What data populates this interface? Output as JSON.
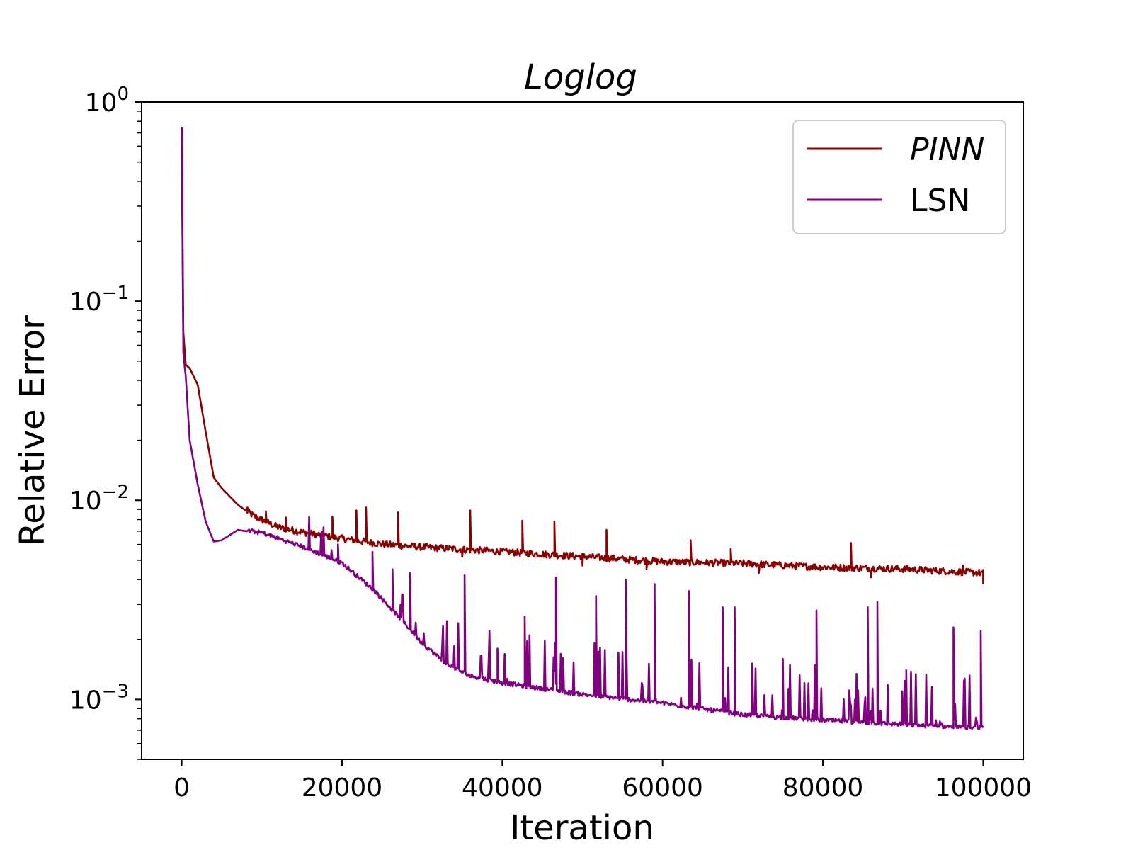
{
  "chart_data": {
    "type": "line",
    "title": "Loglog",
    "xlabel": "Iteration",
    "ylabel": "Relative Error",
    "xlim": [
      -5000,
      105000
    ],
    "ylim": [
      0.0005,
      1.0
    ],
    "yscale": "log",
    "grid": false,
    "legend_position": "top-right",
    "x_ticks": [
      {
        "value": 0,
        "label": "0"
      },
      {
        "value": 20000,
        "label": "20000"
      },
      {
        "value": 40000,
        "label": "40000"
      },
      {
        "value": 60000,
        "label": "60000"
      },
      {
        "value": 80000,
        "label": "80000"
      },
      {
        "value": 100000,
        "label": "100000"
      }
    ],
    "y_ticks": [
      {
        "value": 1,
        "base": "10",
        "exp": "0"
      },
      {
        "value": 0.1,
        "base": "10",
        "exp": "−1"
      },
      {
        "value": 0.01,
        "base": "10",
        "exp": "−2"
      },
      {
        "value": 0.001,
        "base": "10",
        "exp": "−3"
      }
    ],
    "series": [
      {
        "name": "PINN",
        "color": "#8b0000",
        "italic": true,
        "x": [
          0,
          200,
          500,
          1000,
          2000,
          3000,
          4000,
          5000,
          7000,
          9000,
          12000,
          15000,
          20000,
          25000,
          30000,
          40000,
          50000,
          60000,
          70000,
          80000,
          90000,
          100000
        ],
        "y": [
          0.75,
          0.07,
          0.048,
          0.046,
          0.038,
          0.022,
          0.013,
          0.0115,
          0.0095,
          0.0083,
          0.0073,
          0.0069,
          0.0064,
          0.006,
          0.0058,
          0.0055,
          0.0052,
          0.0049,
          0.0048,
          0.0046,
          0.0045,
          0.0043
        ],
        "spikes": [
          {
            "x": 8200,
            "y": 0.0092
          },
          {
            "x": 10500,
            "y": 0.0088
          },
          {
            "x": 13000,
            "y": 0.0082
          },
          {
            "x": 18800,
            "y": 0.0083
          },
          {
            "x": 21800,
            "y": 0.0089
          },
          {
            "x": 23000,
            "y": 0.0092
          },
          {
            "x": 27000,
            "y": 0.0087
          },
          {
            "x": 36000,
            "y": 0.0089
          },
          {
            "x": 42500,
            "y": 0.0079
          },
          {
            "x": 46500,
            "y": 0.0078
          },
          {
            "x": 53000,
            "y": 0.0071
          },
          {
            "x": 63500,
            "y": 0.0063
          },
          {
            "x": 68500,
            "y": 0.0057
          },
          {
            "x": 83500,
            "y": 0.0061
          },
          {
            "x": 97500,
            "y": 0.0047
          }
        ],
        "dips": [
          {
            "x": 35000,
            "y": 0.0052
          },
          {
            "x": 50000,
            "y": 0.0047
          },
          {
            "x": 58000,
            "y": 0.0045
          },
          {
            "x": 72000,
            "y": 0.0043
          },
          {
            "x": 86000,
            "y": 0.0041
          },
          {
            "x": 100000,
            "y": 0.0038
          }
        ]
      },
      {
        "name": "LSN",
        "color": "#800080",
        "italic": false,
        "x": [
          0,
          200,
          500,
          1000,
          2000,
          3000,
          4000,
          5000,
          7000,
          10000,
          15000,
          20000,
          24000,
          27000,
          30000,
          33000,
          36000,
          40000,
          50000,
          60000,
          70000,
          80000,
          90000,
          100000
        ],
        "y": [
          0.75,
          0.055,
          0.042,
          0.02,
          0.012,
          0.0078,
          0.0062,
          0.0063,
          0.0071,
          0.0068,
          0.0058,
          0.0048,
          0.0035,
          0.0026,
          0.0019,
          0.0015,
          0.0013,
          0.0012,
          0.00105,
          0.00095,
          0.00083,
          0.00078,
          0.00074,
          0.00071
        ],
        "spikes": [
          {
            "x": 19500,
            "y": 0.006
          },
          {
            "x": 23800,
            "y": 0.0055
          },
          {
            "x": 26300,
            "y": 0.0045
          },
          {
            "x": 28500,
            "y": 0.0043
          },
          {
            "x": 35300,
            "y": 0.0042
          },
          {
            "x": 39400,
            "y": 0.0018
          },
          {
            "x": 42800,
            "y": 0.0026
          },
          {
            "x": 46700,
            "y": 0.0041
          },
          {
            "x": 51700,
            "y": 0.0033
          },
          {
            "x": 55400,
            "y": 0.004
          },
          {
            "x": 59000,
            "y": 0.0038
          },
          {
            "x": 63300,
            "y": 0.0035
          },
          {
            "x": 67500,
            "y": 0.0029
          },
          {
            "x": 69000,
            "y": 0.0029
          },
          {
            "x": 75000,
            "y": 0.0016
          },
          {
            "x": 79200,
            "y": 0.0028
          },
          {
            "x": 85600,
            "y": 0.0029
          },
          {
            "x": 86800,
            "y": 0.0031
          },
          {
            "x": 90400,
            "y": 0.0014
          },
          {
            "x": 96300,
            "y": 0.0023
          },
          {
            "x": 99700,
            "y": 0.0022
          }
        ]
      }
    ]
  }
}
